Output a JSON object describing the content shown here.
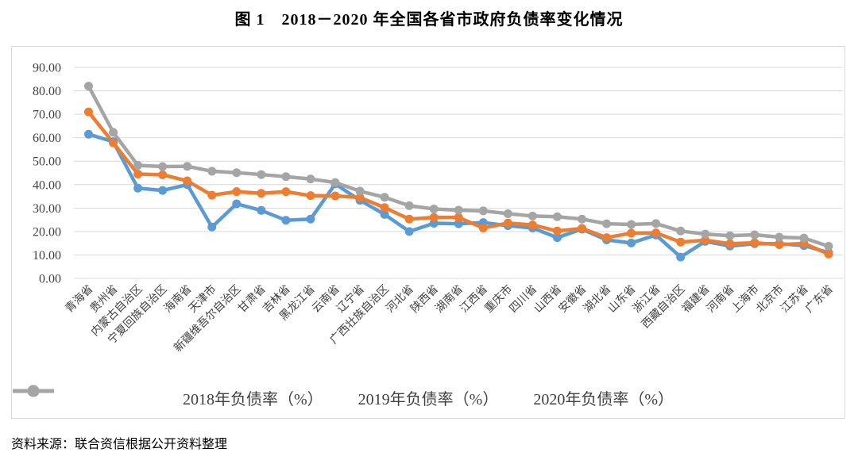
{
  "chart_title": "图 1　2018－2020 年全国各省市政府负债率变化情况",
  "source_note": "资料来源：联合资信根据公开资料整理",
  "colors": {
    "s2018": "#5B9BD5",
    "s2019": "#ED7D31",
    "s2020": "#A5A5A5",
    "gridline": "#D9D9D9",
    "axis_text": "#404040",
    "frame_border": "#D9D9D9"
  },
  "chart_data": {
    "type": "line",
    "title": "图 1　2018－2020 年全国各省市政府负债率变化情况",
    "xlabel": "",
    "ylabel": "",
    "ylim": [
      0,
      90
    ],
    "y_tick_step": 10,
    "y_tick_labels": [
      "0.00",
      "10.00",
      "20.00",
      "30.00",
      "40.00",
      "50.00",
      "60.00",
      "70.00",
      "80.00",
      "90.00"
    ],
    "grid": "horizontal-only",
    "legend_position": "bottom",
    "categories": [
      "青海省",
      "贵州省",
      "内蒙古自治区",
      "宁夏回族自治区",
      "海南省",
      "天津市",
      "新疆维吾尔自治区",
      "甘肃省",
      "吉林省",
      "黑龙江省",
      "云南省",
      "辽宁省",
      "广西壮族自治区",
      "河北省",
      "陕西省",
      "湖南省",
      "江西省",
      "重庆市",
      "四川省",
      "山西省",
      "安徽省",
      "湖北省",
      "山东省",
      "浙江省",
      "西藏自治区",
      "福建省",
      "河南省",
      "上海市",
      "北京市",
      "江苏省",
      "广东省"
    ],
    "series": [
      {
        "name": "2018年负债率（%）",
        "color": "#5B9BD5",
        "values": [
          61.5,
          58.3,
          38.5,
          37.5,
          40.0,
          21.9,
          31.8,
          29.0,
          24.8,
          25.3,
          40.3,
          33.3,
          27.3,
          20.0,
          23.5,
          23.3,
          23.8,
          22.5,
          21.5,
          17.4,
          21.0,
          16.4,
          15.1,
          18.5,
          9.1,
          15.8,
          13.8,
          14.8,
          14.8,
          14.0,
          11.0
        ]
      },
      {
        "name": "2019年负债率（%）",
        "color": "#ED7D31",
        "values": [
          71.0,
          57.8,
          44.5,
          44.2,
          41.6,
          35.5,
          37.0,
          36.3,
          37.0,
          35.3,
          35.2,
          34.5,
          30.2,
          25.3,
          26.0,
          26.0,
          21.5,
          23.6,
          22.8,
          20.2,
          21.3,
          17.4,
          19.3,
          19.4,
          15.5,
          16.3,
          14.8,
          15.2,
          14.4,
          14.9,
          10.4
        ]
      },
      {
        "name": "2020年负债率（%）",
        "color": "#A5A5A5",
        "values": [
          82.0,
          62.3,
          48.2,
          47.7,
          47.8,
          45.7,
          45.1,
          44.3,
          43.4,
          42.4,
          40.9,
          37.2,
          34.6,
          31.0,
          29.6,
          29.1,
          28.8,
          27.6,
          26.6,
          26.3,
          25.3,
          23.3,
          23.0,
          23.4,
          20.2,
          18.9,
          18.2,
          18.6,
          17.6,
          17.2,
          13.7
        ]
      }
    ]
  }
}
